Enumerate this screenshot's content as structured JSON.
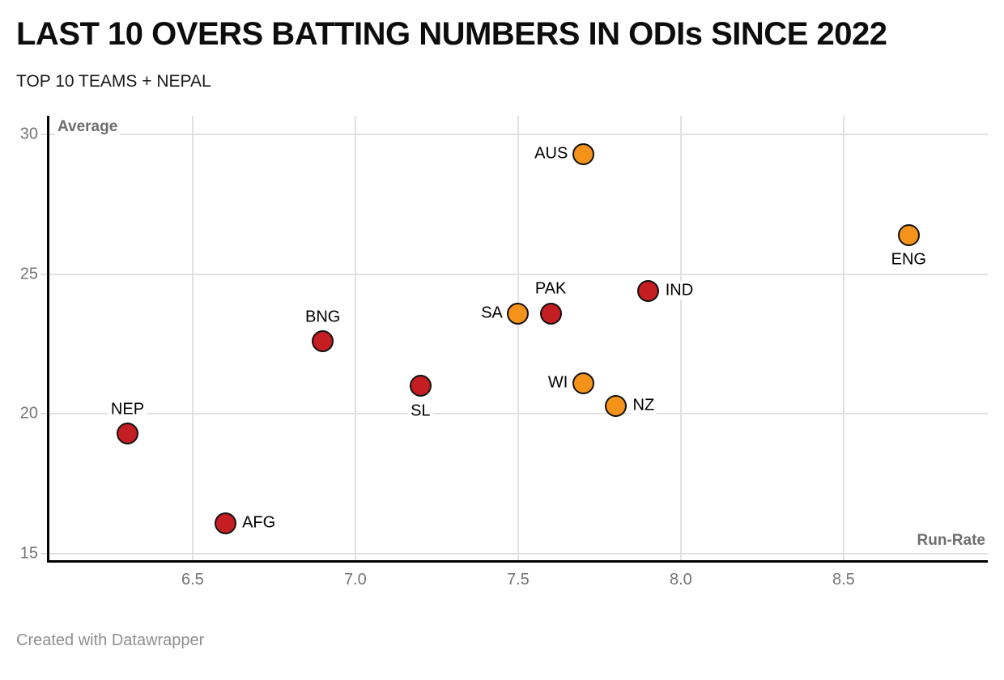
{
  "header": {
    "title": "LAST 10 OVERS BATTING NUMBERS IN ODIs SINCE 2022",
    "subtitle": "TOP 10 TEAMS + NEPAL"
  },
  "footer": {
    "attribution": "Created with Datawrapper"
  },
  "colors": {
    "orange": "#F5921A",
    "red": "#C41E23",
    "grid": "#E1E1E1",
    "axis": "#000000",
    "tick_label": "#757575",
    "axis_label": "#6E6E6E"
  },
  "chart_data": {
    "type": "scatter",
    "title": "LAST 10 OVERS BATTING NUMBERS IN ODIs SINCE 2022",
    "subtitle": "TOP 10 TEAMS + NEPAL",
    "xlabel": "Run-Rate",
    "ylabel": "Average",
    "xlim": [
      6.055,
      8.943
    ],
    "ylim": [
      14.74,
      30.67
    ],
    "grid": true,
    "legend": "none",
    "x_ticks": [
      6.5,
      7.0,
      7.5,
      8.0,
      8.5
    ],
    "x_tick_labels": [
      "6.5",
      "7.0",
      "7.5",
      "8.0",
      "8.5"
    ],
    "y_ticks": [
      15,
      20,
      25,
      30
    ],
    "y_tick_labels": [
      "15",
      "20",
      "25",
      "30"
    ],
    "points": [
      {
        "team": "AUS",
        "run_rate": 7.7,
        "average": 29.3,
        "color": "orange",
        "label_pos": "left"
      },
      {
        "team": "ENG",
        "run_rate": 8.7,
        "average": 26.4,
        "color": "orange",
        "label_pos": "below"
      },
      {
        "team": "IND",
        "run_rate": 7.9,
        "average": 24.4,
        "color": "red",
        "label_pos": "right"
      },
      {
        "team": "PAK",
        "run_rate": 7.6,
        "average": 23.6,
        "color": "red",
        "label_pos": "above"
      },
      {
        "team": "SA",
        "run_rate": 7.5,
        "average": 23.6,
        "color": "orange",
        "label_pos": "left"
      },
      {
        "team": "BNG",
        "run_rate": 6.9,
        "average": 22.6,
        "color": "red",
        "label_pos": "above"
      },
      {
        "team": "WI",
        "run_rate": 7.7,
        "average": 21.1,
        "color": "orange",
        "label_pos": "left"
      },
      {
        "team": "SL",
        "run_rate": 7.2,
        "average": 21.0,
        "color": "red",
        "label_pos": "below"
      },
      {
        "team": "NZ",
        "run_rate": 7.8,
        "average": 20.3,
        "color": "orange",
        "label_pos": "right"
      },
      {
        "team": "NEP",
        "run_rate": 6.3,
        "average": 19.3,
        "color": "red",
        "label_pos": "above"
      },
      {
        "team": "AFG",
        "run_rate": 6.6,
        "average": 16.1,
        "color": "red",
        "label_pos": "right"
      }
    ]
  }
}
